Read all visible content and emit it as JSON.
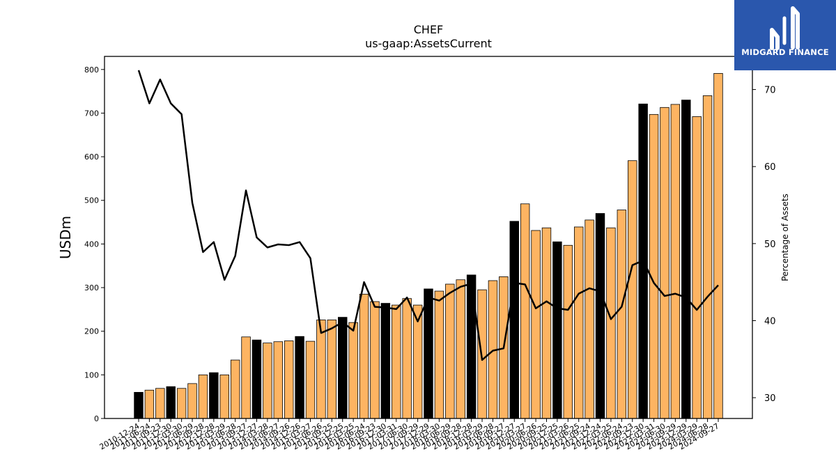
{
  "chart_data": {
    "type": "bar",
    "title": "CHEF",
    "subtitle": "us-gaap:AssetsCurrent",
    "ylabel": "USDm",
    "y2label": "Percentage of Assets",
    "ylim": [
      0,
      830
    ],
    "y2lim": [
      27.3,
      74.3
    ],
    "yticks": [
      0,
      100,
      200,
      300,
      400,
      500,
      600,
      700,
      800
    ],
    "y2ticks": [
      30,
      40,
      50,
      60,
      70
    ],
    "colors": {
      "bar": "#fdb462",
      "bar_highlight": "#000000",
      "line": "#000000"
    },
    "categories": [
      "2010-12-24",
      "2011-06-24",
      "2011-09-23",
      "2011-12-30",
      "2012-03-30",
      "2012-06-29",
      "2012-09-28",
      "2012-12-28",
      "2013-03-29",
      "2013-06-28",
      "2013-09-27",
      "2013-12-27",
      "2014-03-28",
      "2014-06-27",
      "2014-09-26",
      "2014-12-26",
      "2015-03-27",
      "2015-06-26",
      "2015-09-25",
      "2015-12-25",
      "2016-03-25",
      "2016-06-24",
      "2016-09-23",
      "2016-12-30",
      "2017-03-31",
      "2017-06-30",
      "2017-09-29",
      "2017-12-29",
      "2018-03-30",
      "2018-06-29",
      "2018-09-28",
      "2018-12-28",
      "2019-03-29",
      "2019-06-28",
      "2019-09-27",
      "2019-12-27",
      "2020-03-27",
      "2020-06-26",
      "2020-09-25",
      "2020-12-25",
      "2021-03-26",
      "2021-06-25",
      "2021-09-24",
      "2021-12-24",
      "2022-03-25",
      "2022-06-24",
      "2022-09-23",
      "2022-12-30",
      "2023-03-31",
      "2023-06-30",
      "2023-09-29",
      "2023-12-29",
      "2024-03-29",
      "2024-06-28",
      "2024-09-27"
    ],
    "series": [
      {
        "values": [
          60,
          65,
          69,
          73,
          69,
          80,
          100,
          105,
          100,
          134,
          187,
          180,
          173,
          176,
          178,
          188,
          177,
          226,
          226,
          232,
          220,
          285,
          268,
          264,
          260,
          275,
          260,
          297,
          292,
          308,
          318,
          329,
          295,
          316,
          325,
          452,
          492,
          431,
          437,
          405,
          397,
          439,
          455,
          470,
          437,
          478,
          591,
          721,
          697,
          713,
          720,
          730,
          692,
          740,
          791
        ],
        "highlight": [
          0,
          3,
          7,
          11,
          15,
          19,
          23,
          27,
          31,
          35,
          39,
          43,
          47,
          51
        ]
      },
      {
        "axis": "right",
        "values": [
          72.5,
          68.2,
          71.3,
          68.2,
          66.8,
          55.3,
          48.9,
          50.2,
          45.3,
          48.4,
          56.9,
          50.8,
          49.5,
          49.9,
          49.8,
          50.2,
          48.1,
          38.4,
          39.0,
          39.8,
          38.7,
          45.0,
          41.8,
          41.7,
          41.5,
          43.0,
          39.9,
          43.0,
          42.6,
          43.6,
          44.4,
          44.8,
          34.9,
          36.1,
          36.4,
          44.9,
          44.7,
          41.6,
          42.5,
          41.6,
          41.4,
          43.5,
          44.2,
          43.8,
          40.2,
          41.8,
          47.2,
          47.8,
          44.9,
          43.2,
          43.5,
          43.0,
          41.4,
          43.1,
          44.6
        ]
      }
    ]
  },
  "brand": {
    "name": "MIDGARD FINANCE"
  }
}
